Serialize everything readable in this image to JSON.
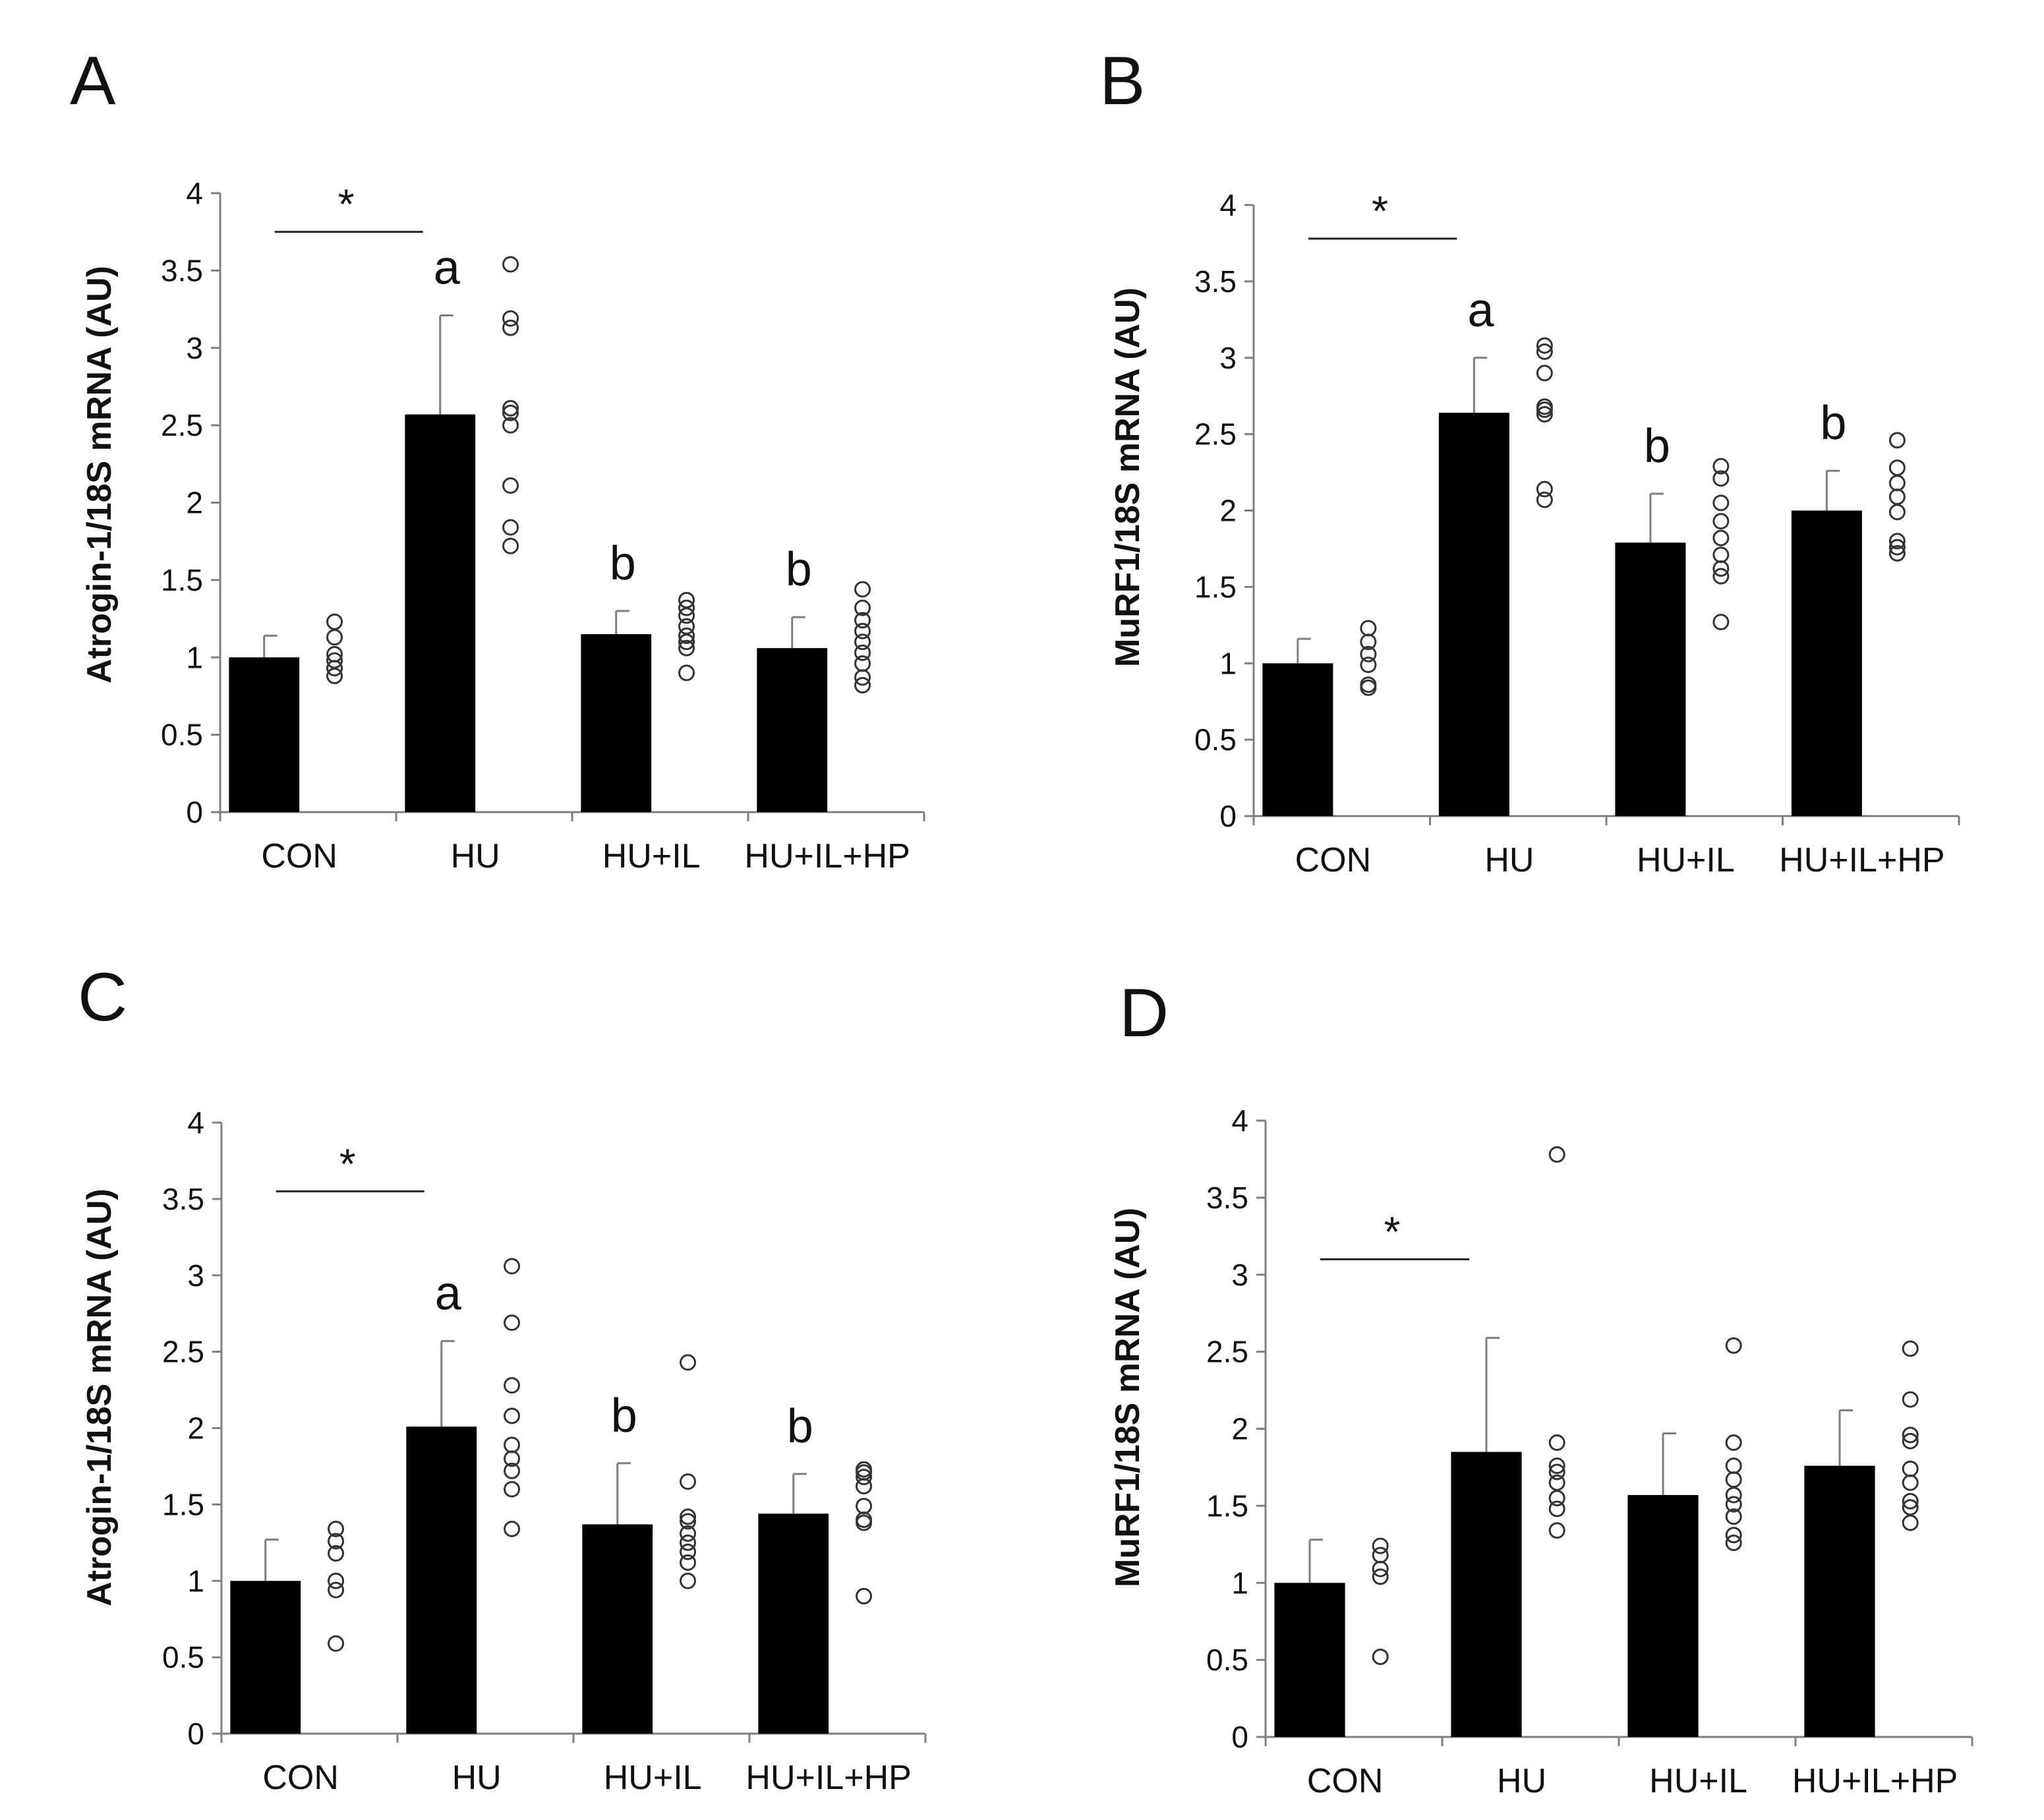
{
  "figure": {
    "colors": {
      "bar": "#000000",
      "axis": "#7f7f7f",
      "point_stroke": "#333333",
      "text": "#111111"
    }
  },
  "chart_data": [
    {
      "panel": "A",
      "type": "bar",
      "categories": [
        "CON",
        "HU",
        "HU+IL",
        "HU+IL+HP"
      ],
      "values": [
        1.0,
        2.57,
        1.15,
        1.06
      ],
      "error_upper": [
        1.14,
        3.21,
        1.3,
        1.26
      ],
      "ylabel": "Atrogin-1/18S mRNA (AU)",
      "ylim": [
        0,
        4
      ],
      "yticks": [
        "0",
        "0.5",
        "1",
        "1.5",
        "2",
        "2.5",
        "3",
        "3.5",
        "4"
      ],
      "points": [
        [
          0.88,
          0.93,
          0.98,
          1.02,
          1.13,
          1.23
        ],
        [
          1.72,
          1.84,
          2.11,
          2.5,
          2.58,
          2.61,
          3.13,
          3.19,
          3.54
        ],
        [
          0.9,
          1.06,
          1.1,
          1.14,
          1.2,
          1.27,
          1.32,
          1.37
        ],
        [
          0.82,
          0.87,
          0.96,
          1.03,
          1.1,
          1.17,
          1.24,
          1.32,
          1.44
        ]
      ],
      "significance": {
        "bracket_from": "CON",
        "bracket_to": "HU",
        "bracket_y": 3.75,
        "label": "*"
      },
      "letters": [
        "",
        "a",
        "b",
        "b"
      ]
    },
    {
      "panel": "B",
      "type": "bar",
      "categories": [
        "CON",
        "HU",
        "HU+IL",
        "HU+IL+HP"
      ],
      "values": [
        1.0,
        2.64,
        1.79,
        2.0
      ],
      "error_upper": [
        1.16,
        3.0,
        2.11,
        2.26
      ],
      "ylabel": "MuRF1/18S mRNA (AU)",
      "ylim": [
        0,
        4
      ],
      "yticks": [
        "0",
        "0.5",
        "1",
        "1.5",
        "2",
        "2.5",
        "3",
        "3.5",
        "4"
      ],
      "points": [
        [
          0.84,
          0.86,
          0.99,
          1.06,
          1.14,
          1.23
        ],
        [
          2.07,
          2.14,
          2.63,
          2.66,
          2.68,
          2.9,
          3.04,
          3.08
        ],
        [
          1.27,
          1.57,
          1.62,
          1.71,
          1.82,
          1.93,
          2.05,
          2.21,
          2.29
        ],
        [
          1.72,
          1.76,
          1.8,
          1.99,
          2.09,
          2.18,
          2.28,
          2.46
        ]
      ],
      "significance": {
        "bracket_from": "CON",
        "bracket_to": "HU",
        "bracket_y": 3.78,
        "label": "*"
      },
      "letters": [
        "",
        "a",
        "b",
        "b"
      ]
    },
    {
      "panel": "C",
      "type": "bar",
      "categories": [
        "CON",
        "HU",
        "HU+IL",
        "HU+IL+HP"
      ],
      "values": [
        1.0,
        2.01,
        1.37,
        1.44
      ],
      "error_upper": [
        1.27,
        2.57,
        1.77,
        1.7
      ],
      "ylabel": "Atrogin-1/18S mRNA (AU)",
      "ylim": [
        0,
        4
      ],
      "yticks": [
        "0",
        "0.5",
        "1",
        "1.5",
        "2",
        "2.5",
        "3",
        "3.5",
        "4"
      ],
      "points": [
        [
          0.59,
          0.94,
          1.0,
          1.18,
          1.26,
          1.34
        ],
        [
          1.34,
          1.6,
          1.72,
          1.8,
          1.89,
          2.08,
          2.28,
          2.69,
          3.06
        ],
        [
          1.0,
          1.12,
          1.19,
          1.25,
          1.31,
          1.39,
          1.42,
          1.65,
          2.43
        ],
        [
          0.9,
          1.38,
          1.4,
          1.49,
          1.62,
          1.68,
          1.71,
          1.73
        ]
      ],
      "significance": {
        "bracket_from": "CON",
        "bracket_to": "HU",
        "bracket_y": 3.55,
        "label": "*"
      },
      "letters": [
        "",
        "a",
        "b",
        "b"
      ]
    },
    {
      "panel": "D",
      "type": "bar",
      "categories": [
        "CON",
        "HU",
        "HU+IL",
        "HU+IL+HP"
      ],
      "values": [
        1.0,
        1.85,
        1.57,
        1.76
      ],
      "error_upper": [
        1.28,
        2.59,
        1.97,
        2.12
      ],
      "ylabel": "MuRF1/18S mRNA (AU)",
      "ylim": [
        0,
        4
      ],
      "yticks": [
        "0",
        "0.5",
        "1",
        "1.5",
        "2",
        "2.5",
        "3",
        "3.5",
        "4"
      ],
      "points": [
        [
          0.52,
          1.04,
          1.09,
          1.18,
          1.24
        ],
        [
          1.34,
          1.48,
          1.55,
          1.65,
          1.72,
          1.76,
          1.91,
          3.78
        ],
        [
          1.26,
          1.31,
          1.43,
          1.51,
          1.57,
          1.67,
          1.76,
          1.91,
          2.54
        ],
        [
          1.39,
          1.49,
          1.53,
          1.65,
          1.74,
          1.92,
          1.96,
          2.19,
          2.52
        ]
      ],
      "significance": {
        "bracket_from": "CON",
        "bracket_to": "HU",
        "bracket_y": 3.1,
        "label": "*"
      },
      "letters": [
        "",
        "",
        "",
        ""
      ]
    }
  ]
}
